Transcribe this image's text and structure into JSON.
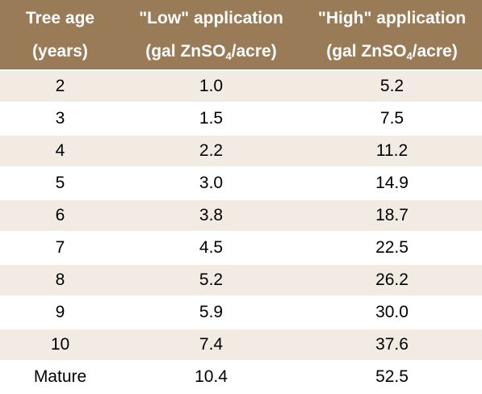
{
  "table": {
    "headers": [
      {
        "line1": "Tree age",
        "line2": "(years)"
      },
      {
        "line1": "\"Low\" application",
        "line2_pre": "(gal ZnSO",
        "line2_sub": "4",
        "line2_post": "/acre)"
      },
      {
        "line1": "\"High\" application",
        "line2_pre": "(gal ZnSO",
        "line2_sub": "4",
        "line2_post": "/acre)"
      }
    ],
    "rows": [
      [
        "2",
        "1.0",
        "5.2"
      ],
      [
        "3",
        "1.5",
        "7.5"
      ],
      [
        "4",
        "2.2",
        "11.2"
      ],
      [
        "5",
        "3.0",
        "14.9"
      ],
      [
        "6",
        "3.8",
        "18.7"
      ],
      [
        "7",
        "4.5",
        "22.5"
      ],
      [
        "8",
        "5.2",
        "26.2"
      ],
      [
        "9",
        "5.9",
        "30.0"
      ],
      [
        "10",
        "7.4",
        "37.6"
      ],
      [
        "Mature",
        "10.4",
        "52.5"
      ]
    ],
    "colors": {
      "header_bg": "#9a7b57",
      "header_text": "#ffffff",
      "band_bg": "#f2ebe4",
      "row_bg": "#ffffff"
    }
  }
}
